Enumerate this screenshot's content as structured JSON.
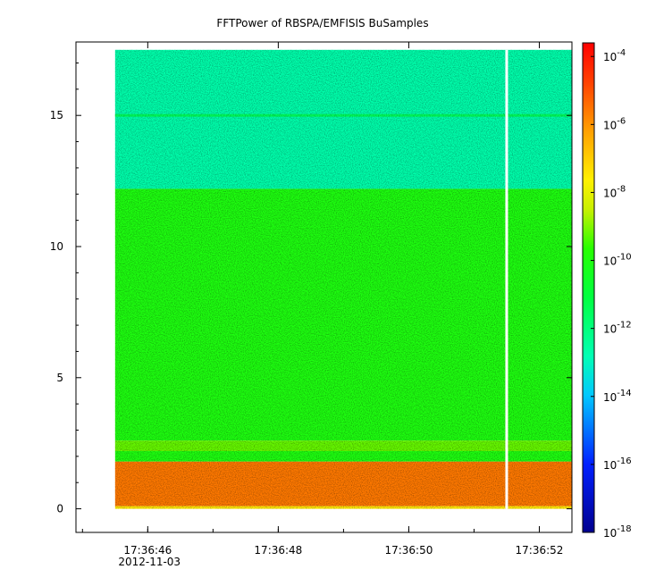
{
  "chart_data": {
    "type": "heatmap",
    "title": "FFTPower of RBSPA/EMFISIS  BuSamples",
    "xlabel": "",
    "ylabel": "",
    "x_ticks": [
      {
        "time": "17:36:46",
        "date": "2012-11-03"
      },
      {
        "time": "17:36:48",
        "date": ""
      },
      {
        "time": "17:36:50",
        "date": ""
      },
      {
        "time": "17:36:52",
        "date": ""
      }
    ],
    "x_range_seconds": [
      "17:36:44.9",
      "17:36:52.5"
    ],
    "data_time_range": [
      "17:36:45.5",
      "17:36:52.5"
    ],
    "data_gap_at": "17:36:51.5",
    "y_ticks": [
      0,
      5,
      10,
      15
    ],
    "ylim": [
      -0.9,
      17.8
    ],
    "data_y_range": [
      0,
      17.5
    ],
    "colorbar": {
      "scale": "log",
      "range_exponent": [
        -18,
        -3.6
      ],
      "ticks": [
        {
          "base": "10",
          "exp": "-4",
          "value_exponent": -4
        },
        {
          "base": "10",
          "exp": "-6",
          "value_exponent": -6
        },
        {
          "base": "10",
          "exp": "-8",
          "value_exponent": -8
        },
        {
          "base": "10",
          "exp": "-10",
          "value_exponent": -10
        },
        {
          "base": "10",
          "exp": "-12",
          "value_exponent": -12
        },
        {
          "base": "10",
          "exp": "-14",
          "value_exponent": -14
        },
        {
          "base": "10",
          "exp": "-16",
          "value_exponent": -16
        },
        {
          "base": "10",
          "exp": "-18",
          "value_exponent": -18
        }
      ]
    },
    "spectral_bands": [
      {
        "y_from": 12.2,
        "y_to": 17.5,
        "log_power": -12.7
      },
      {
        "y_from": 14.95,
        "y_to": 15.05,
        "log_power": -11.5
      },
      {
        "y_from": 2.6,
        "y_to": 12.2,
        "log_power": -10.0
      },
      {
        "y_from": 2.2,
        "y_to": 2.6,
        "log_power": -9.2
      },
      {
        "y_from": 1.8,
        "y_to": 2.2,
        "log_power": -10.0
      },
      {
        "y_from": 0.1,
        "y_to": 1.8,
        "log_power": -5.6
      },
      {
        "y_from": 0.0,
        "y_to": 0.1,
        "log_power": -7.5
      }
    ]
  }
}
